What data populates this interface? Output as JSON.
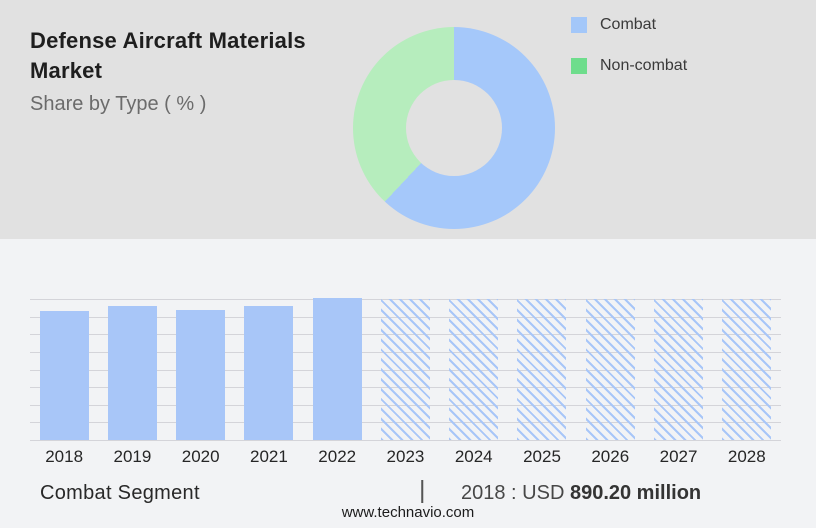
{
  "header": {
    "title_line1": "Defense Aircraft Materials",
    "title_line2": "Market",
    "subtitle": "Share by Type ( % )"
  },
  "legend": {
    "items": [
      {
        "label": "Combat",
        "color": "#a3c7f9"
      },
      {
        "label": "Non-combat",
        "color": "#6edd8c"
      }
    ]
  },
  "footer": {
    "segment_label": "Combat Segment",
    "divider": "|",
    "value_prefix": "2018 : USD ",
    "value_bold": "890.20 million",
    "website": "www.technavio.com"
  },
  "colors": {
    "top_background": "#e1e1e1",
    "bottom_background": "#f2f3f5",
    "bar_blue": "#a8c6f8",
    "donut_blue": "#a5c8fa",
    "donut_green": "#b6edbd",
    "legend_green": "#6edd8c",
    "gridline": "#d4d4d9"
  },
  "chart_data": [
    {
      "type": "pie",
      "title": "Share by Type ( % )",
      "labels": [
        "Combat",
        "Non-combat"
      ],
      "values": [
        62,
        38
      ],
      "colors": [
        "#a5c8fa",
        "#b6edbd"
      ],
      "donut": true,
      "inner_radius_pct": 47,
      "start_angle_deg": 0,
      "direction": "clockwise",
      "legend_position": "top-right"
    },
    {
      "type": "bar",
      "title": "Combat Segment market size by year",
      "categories": [
        "2018",
        "2019",
        "2020",
        "2021",
        "2022",
        "2023",
        "2024",
        "2025",
        "2026",
        "2027",
        "2028"
      ],
      "series": [
        {
          "name": "Combat segment (USD million)",
          "values": [
            890.2,
            924,
            899,
            924,
            981,
            null,
            null,
            null,
            null,
            null,
            null
          ]
        }
      ],
      "bar_height_pct": [
        91.4,
        95.0,
        92.1,
        95.0,
        100.7,
        100,
        100,
        100,
        100,
        100,
        100
      ],
      "forecast_hatched": [
        false,
        false,
        false,
        false,
        false,
        true,
        true,
        true,
        true,
        true,
        true
      ],
      "annotation": "2018 : USD 890.20 million",
      "xlabel": "",
      "ylabel": "",
      "y_axis_labels_visible": false,
      "grid": true,
      "gridline_count": 9
    }
  ]
}
